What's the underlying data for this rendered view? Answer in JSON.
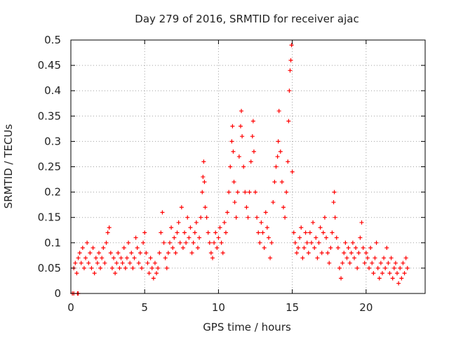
{
  "chart_data": {
    "type": "scatter",
    "title": "Day 279 of 2016, SRMTID for receiver ajac",
    "xlabel": "GPS time / hours",
    "ylabel": "SRMTID / TECUs",
    "xlim": [
      0,
      24
    ],
    "ylim": [
      0,
      0.5
    ],
    "xticks": [
      0,
      5,
      10,
      15,
      20
    ],
    "yticks": [
      0,
      0.05,
      0.1,
      0.15,
      0.2,
      0.25,
      0.3,
      0.35,
      0.4,
      0.45,
      0.5
    ],
    "xtick_labels": [
      "0",
      "5",
      "10",
      "15",
      "20"
    ],
    "ytick_labels": [
      "0",
      "0.05",
      "0.1",
      "0.15",
      "0.2",
      "0.25",
      "0.3",
      "0.35",
      "0.4",
      "0.45",
      "0.5"
    ],
    "grid": true,
    "marker": "+",
    "series": [
      {
        "name": "SRMTID",
        "color": "#ff0000",
        "points": [
          [
            0.1,
            0.0
          ],
          [
            0.2,
            0.0
          ],
          [
            0.45,
            0.0
          ],
          [
            0.5,
            0.0
          ],
          [
            0.2,
            0.05
          ],
          [
            0.3,
            0.06
          ],
          [
            0.4,
            0.04
          ],
          [
            0.5,
            0.07
          ],
          [
            0.6,
            0.08
          ],
          [
            0.7,
            0.06
          ],
          [
            0.8,
            0.09
          ],
          [
            0.9,
            0.05
          ],
          [
            1.0,
            0.07
          ],
          [
            1.1,
            0.1
          ],
          [
            1.2,
            0.06
          ],
          [
            1.3,
            0.08
          ],
          [
            1.4,
            0.05
          ],
          [
            1.5,
            0.09
          ],
          [
            1.6,
            0.04
          ],
          [
            1.7,
            0.07
          ],
          [
            1.8,
            0.06
          ],
          [
            1.9,
            0.08
          ],
          [
            2.0,
            0.05
          ],
          [
            2.1,
            0.07
          ],
          [
            2.2,
            0.09
          ],
          [
            2.3,
            0.06
          ],
          [
            2.4,
            0.1
          ],
          [
            2.5,
            0.12
          ],
          [
            2.6,
            0.13
          ],
          [
            2.7,
            0.08
          ],
          [
            2.8,
            0.05
          ],
          [
            2.9,
            0.07
          ],
          [
            3.0,
            0.04
          ],
          [
            3.1,
            0.06
          ],
          [
            3.2,
            0.08
          ],
          [
            3.3,
            0.05
          ],
          [
            3.4,
            0.07
          ],
          [
            3.5,
            0.06
          ],
          [
            3.6,
            0.09
          ],
          [
            3.7,
            0.05
          ],
          [
            3.8,
            0.07
          ],
          [
            3.9,
            0.1
          ],
          [
            4.0,
            0.06
          ],
          [
            4.1,
            0.08
          ],
          [
            4.2,
            0.05
          ],
          [
            4.3,
            0.07
          ],
          [
            4.4,
            0.11
          ],
          [
            4.5,
            0.09
          ],
          [
            4.6,
            0.06
          ],
          [
            4.7,
            0.08
          ],
          [
            4.8,
            0.05
          ],
          [
            4.9,
            0.1
          ],
          [
            5.0,
            0.12
          ],
          [
            5.1,
            0.08
          ],
          [
            5.2,
            0.06
          ],
          [
            5.3,
            0.04
          ],
          [
            5.4,
            0.07
          ],
          [
            5.5,
            0.05
          ],
          [
            5.6,
            0.03
          ],
          [
            5.7,
            0.06
          ],
          [
            5.8,
            0.04
          ],
          [
            5.9,
            0.05
          ],
          [
            6.0,
            0.08
          ],
          [
            6.1,
            0.12
          ],
          [
            6.2,
            0.16
          ],
          [
            6.3,
            0.1
          ],
          [
            6.4,
            0.07
          ],
          [
            6.5,
            0.05
          ],
          [
            6.6,
            0.08
          ],
          [
            6.7,
            0.1
          ],
          [
            6.8,
            0.13
          ],
          [
            6.9,
            0.09
          ],
          [
            7.0,
            0.11
          ],
          [
            7.1,
            0.08
          ],
          [
            7.2,
            0.12
          ],
          [
            7.3,
            0.14
          ],
          [
            7.4,
            0.1
          ],
          [
            7.5,
            0.17
          ],
          [
            7.6,
            0.09
          ],
          [
            7.7,
            0.12
          ],
          [
            7.8,
            0.1
          ],
          [
            7.9,
            0.15
          ],
          [
            8.0,
            0.11
          ],
          [
            8.1,
            0.13
          ],
          [
            8.2,
            0.08
          ],
          [
            8.3,
            0.1
          ],
          [
            8.4,
            0.12
          ],
          [
            8.5,
            0.14
          ],
          [
            8.6,
            0.09
          ],
          [
            8.7,
            0.11
          ],
          [
            8.8,
            0.15
          ],
          [
            8.9,
            0.2
          ],
          [
            8.95,
            0.23
          ],
          [
            9.0,
            0.26
          ],
          [
            9.05,
            0.22
          ],
          [
            9.1,
            0.17
          ],
          [
            9.2,
            0.15
          ],
          [
            9.3,
            0.12
          ],
          [
            9.4,
            0.1
          ],
          [
            9.5,
            0.08
          ],
          [
            9.6,
            0.07
          ],
          [
            9.7,
            0.1
          ],
          [
            9.8,
            0.12
          ],
          [
            9.9,
            0.09
          ],
          [
            10.0,
            0.11
          ],
          [
            10.1,
            0.13
          ],
          [
            10.2,
            0.1
          ],
          [
            10.3,
            0.08
          ],
          [
            10.4,
            0.14
          ],
          [
            10.5,
            0.12
          ],
          [
            10.6,
            0.16
          ],
          [
            10.7,
            0.2
          ],
          [
            10.8,
            0.25
          ],
          [
            10.9,
            0.3
          ],
          [
            10.95,
            0.33
          ],
          [
            11.0,
            0.28
          ],
          [
            11.05,
            0.22
          ],
          [
            11.1,
            0.18
          ],
          [
            11.2,
            0.15
          ],
          [
            11.3,
            0.2
          ],
          [
            11.4,
            0.27
          ],
          [
            11.5,
            0.33
          ],
          [
            11.55,
            0.36
          ],
          [
            11.6,
            0.31
          ],
          [
            11.7,
            0.25
          ],
          [
            11.8,
            0.2
          ],
          [
            11.9,
            0.17
          ],
          [
            12.0,
            0.15
          ],
          [
            12.1,
            0.2
          ],
          [
            12.2,
            0.26
          ],
          [
            12.3,
            0.31
          ],
          [
            12.35,
            0.34
          ],
          [
            12.4,
            0.28
          ],
          [
            12.5,
            0.2
          ],
          [
            12.6,
            0.15
          ],
          [
            12.7,
            0.12
          ],
          [
            12.8,
            0.1
          ],
          [
            12.9,
            0.14
          ],
          [
            13.0,
            0.12
          ],
          [
            13.1,
            0.09
          ],
          [
            13.2,
            0.16
          ],
          [
            13.3,
            0.13
          ],
          [
            13.4,
            0.11
          ],
          [
            13.5,
            0.07
          ],
          [
            13.6,
            0.1
          ],
          [
            13.7,
            0.18
          ],
          [
            13.8,
            0.22
          ],
          [
            13.9,
            0.25
          ],
          [
            14.0,
            0.27
          ],
          [
            14.05,
            0.3
          ],
          [
            14.1,
            0.36
          ],
          [
            14.2,
            0.28
          ],
          [
            14.3,
            0.22
          ],
          [
            14.4,
            0.17
          ],
          [
            14.5,
            0.15
          ],
          [
            14.6,
            0.2
          ],
          [
            14.7,
            0.26
          ],
          [
            14.75,
            0.34
          ],
          [
            14.8,
            0.4
          ],
          [
            14.85,
            0.44
          ],
          [
            14.9,
            0.46
          ],
          [
            14.95,
            0.49
          ],
          [
            15.0,
            0.24
          ],
          [
            15.1,
            0.12
          ],
          [
            15.2,
            0.1
          ],
          [
            15.3,
            0.08
          ],
          [
            15.4,
            0.09
          ],
          [
            15.5,
            0.11
          ],
          [
            15.6,
            0.13
          ],
          [
            15.7,
            0.07
          ],
          [
            15.8,
            0.09
          ],
          [
            15.9,
            0.12
          ],
          [
            16.0,
            0.1
          ],
          [
            16.1,
            0.08
          ],
          [
            16.2,
            0.12
          ],
          [
            16.3,
            0.1
          ],
          [
            16.4,
            0.14
          ],
          [
            16.5,
            0.09
          ],
          [
            16.6,
            0.11
          ],
          [
            16.7,
            0.07
          ],
          [
            16.8,
            0.1
          ],
          [
            16.9,
            0.13
          ],
          [
            17.0,
            0.08
          ],
          [
            17.1,
            0.12
          ],
          [
            17.2,
            0.15
          ],
          [
            17.3,
            0.11
          ],
          [
            17.4,
            0.08
          ],
          [
            17.5,
            0.06
          ],
          [
            17.6,
            0.09
          ],
          [
            17.7,
            0.12
          ],
          [
            17.8,
            0.18
          ],
          [
            17.85,
            0.2
          ],
          [
            17.9,
            0.15
          ],
          [
            18.0,
            0.11
          ],
          [
            18.1,
            0.09
          ],
          [
            18.2,
            0.05
          ],
          [
            18.3,
            0.03
          ],
          [
            18.4,
            0.06
          ],
          [
            18.5,
            0.08
          ],
          [
            18.6,
            0.1
          ],
          [
            18.7,
            0.07
          ],
          [
            18.8,
            0.09
          ],
          [
            18.9,
            0.06
          ],
          [
            19.0,
            0.08
          ],
          [
            19.1,
            0.1
          ],
          [
            19.2,
            0.07
          ],
          [
            19.3,
            0.09
          ],
          [
            19.4,
            0.05
          ],
          [
            19.5,
            0.08
          ],
          [
            19.6,
            0.11
          ],
          [
            19.7,
            0.14
          ],
          [
            19.8,
            0.09
          ],
          [
            19.9,
            0.06
          ],
          [
            20.0,
            0.08
          ],
          [
            20.1,
            0.07
          ],
          [
            20.2,
            0.05
          ],
          [
            20.3,
            0.09
          ],
          [
            20.4,
            0.06
          ],
          [
            20.5,
            0.04
          ],
          [
            20.6,
            0.07
          ],
          [
            20.7,
            0.1
          ],
          [
            20.8,
            0.05
          ],
          [
            20.9,
            0.03
          ],
          [
            21.0,
            0.06
          ],
          [
            21.1,
            0.04
          ],
          [
            21.2,
            0.07
          ],
          [
            21.3,
            0.05
          ],
          [
            21.4,
            0.09
          ],
          [
            21.5,
            0.06
          ],
          [
            21.6,
            0.04
          ],
          [
            21.7,
            0.07
          ],
          [
            21.8,
            0.03
          ],
          [
            21.9,
            0.05
          ],
          [
            22.0,
            0.06
          ],
          [
            22.1,
            0.04
          ],
          [
            22.2,
            0.02
          ],
          [
            22.3,
            0.05
          ],
          [
            22.4,
            0.03
          ],
          [
            22.5,
            0.06
          ],
          [
            22.6,
            0.04
          ],
          [
            22.7,
            0.07
          ],
          [
            22.8,
            0.05
          ]
        ]
      }
    ]
  }
}
